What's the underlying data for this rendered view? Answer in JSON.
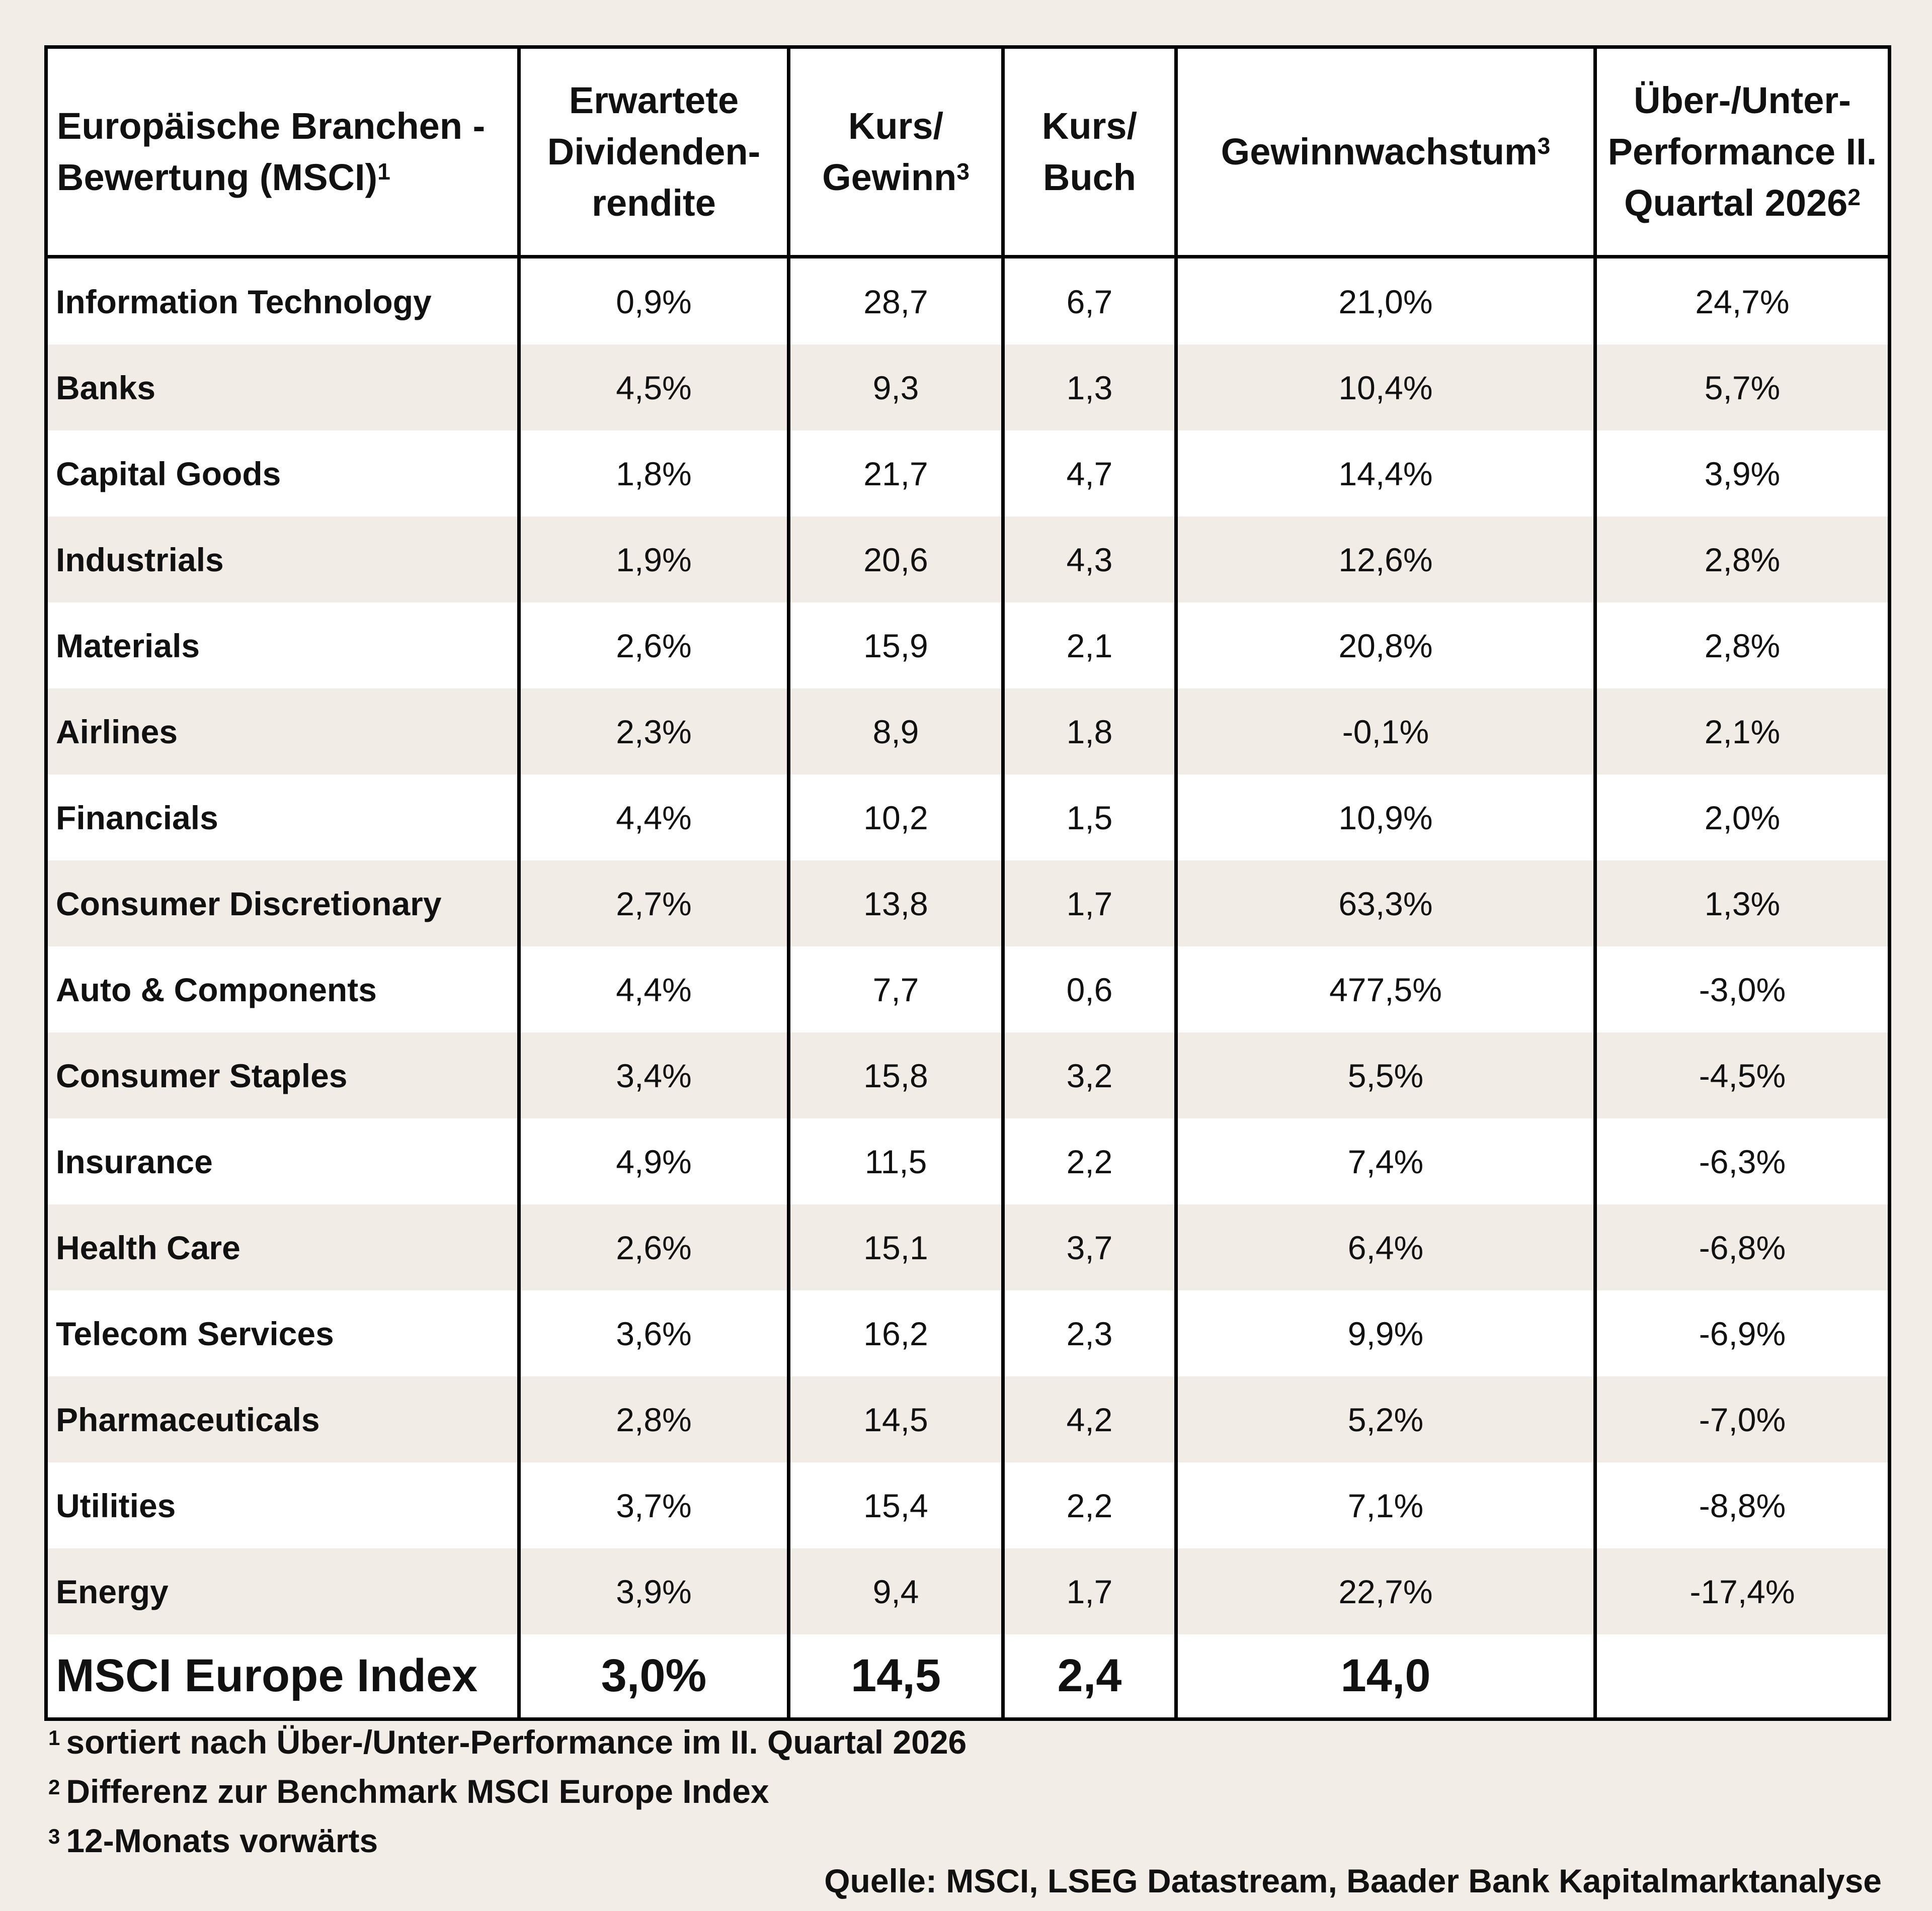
{
  "header": {
    "col1": "Europäische Branchen - Bewertung (MSCI)",
    "col1_sup": "1",
    "col2": "Erwartete Dividenden-rendite",
    "col3": "Kurs/ Gewinn",
    "col3_sup": "3",
    "col4": "Kurs/ Buch",
    "col5": "Gewinnwachstum",
    "col5_sup": "3",
    "col6": "Über-/Unter-Performance II. Quartal 2026",
    "col6_sup": "2"
  },
  "rows": [
    {
      "sector": "Information Technology",
      "div": "0,9%",
      "pe": "28,7",
      "pb": "6,7",
      "growth": "21,0%",
      "perf": "24,7%"
    },
    {
      "sector": "Banks",
      "div": "4,5%",
      "pe": "9,3",
      "pb": "1,3",
      "growth": "10,4%",
      "perf": "5,7%"
    },
    {
      "sector": "Capital Goods",
      "div": "1,8%",
      "pe": "21,7",
      "pb": "4,7",
      "growth": "14,4%",
      "perf": "3,9%"
    },
    {
      "sector": "Industrials",
      "div": "1,9%",
      "pe": "20,6",
      "pb": "4,3",
      "growth": "12,6%",
      "perf": "2,8%"
    },
    {
      "sector": "Materials",
      "div": "2,6%",
      "pe": "15,9",
      "pb": "2,1",
      "growth": "20,8%",
      "perf": "2,8%"
    },
    {
      "sector": "Airlines",
      "div": "2,3%",
      "pe": "8,9",
      "pb": "1,8",
      "growth": "-0,1%",
      "perf": "2,1%"
    },
    {
      "sector": "Financials",
      "div": "4,4%",
      "pe": "10,2",
      "pb": "1,5",
      "growth": "10,9%",
      "perf": "2,0%"
    },
    {
      "sector": "Consumer Discretionary",
      "div": "2,7%",
      "pe": "13,8",
      "pb": "1,7",
      "growth": "63,3%",
      "perf": "1,3%"
    },
    {
      "sector": "Auto & Components",
      "div": "4,4%",
      "pe": "7,7",
      "pb": "0,6",
      "growth": "477,5%",
      "perf": "-3,0%"
    },
    {
      "sector": "Consumer Staples",
      "div": "3,4%",
      "pe": "15,8",
      "pb": "3,2",
      "growth": "5,5%",
      "perf": "-4,5%"
    },
    {
      "sector": "Insurance",
      "div": "4,9%",
      "pe": "11,5",
      "pb": "2,2",
      "growth": "7,4%",
      "perf": "-6,3%"
    },
    {
      "sector": "Health Care",
      "div": "2,6%",
      "pe": "15,1",
      "pb": "3,7",
      "growth": "6,4%",
      "perf": "-6,8%"
    },
    {
      "sector": "Telecom Services",
      "div": "3,6%",
      "pe": "16,2",
      "pb": "2,3",
      "growth": "9,9%",
      "perf": "-6,9%"
    },
    {
      "sector": "Pharmaceuticals",
      "div": "2,8%",
      "pe": "14,5",
      "pb": "4,2",
      "growth": "5,2%",
      "perf": "-7,0%"
    },
    {
      "sector": "Utilities",
      "div": "3,7%",
      "pe": "15,4",
      "pb": "2,2",
      "growth": "7,1%",
      "perf": "-8,8%"
    },
    {
      "sector": "Energy",
      "div": "3,9%",
      "pe": "9,4",
      "pb": "1,7",
      "growth": "22,7%",
      "perf": "-17,4%"
    }
  ],
  "total": {
    "sector": "MSCI Europe Index",
    "div": "3,0%",
    "pe": "14,5",
    "pb": "2,4",
    "growth": "14,0",
    "perf": ""
  },
  "footnotes": [
    {
      "num": "1",
      "text": "sortiert nach Über-/Unter-Performance im II. Quartal 2026"
    },
    {
      "num": "2",
      "text": "Differenz zur Benchmark MSCI Europe Index"
    },
    {
      "num": "3",
      "text": "12-Monats vorwärts"
    }
  ],
  "source": "Quelle: MSCI, LSEG Datastream, Baader Bank Kapitalmarktanalyse",
  "chart_data": {
    "type": "table",
    "columns": [
      "Europäische Branchen - Bewertung (MSCI)",
      "Erwartete Dividenden-rendite",
      "Kurs/ Gewinn",
      "Kurs/ Buch",
      "Gewinnwachstum",
      "Über-/Unter-Performance II. Quartal 2026"
    ]
  }
}
